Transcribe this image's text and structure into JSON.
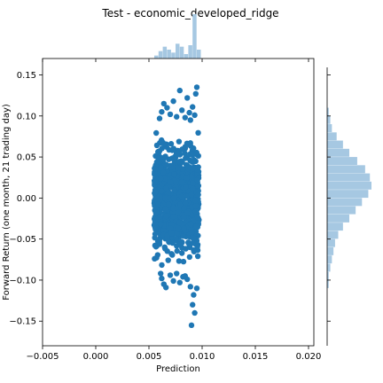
{
  "chart_data": {
    "type": "scatter",
    "title": "Test - economic_developed_ridge",
    "xlabel": "Prediction",
    "ylabel": "Forward Return (one month, 21 trading day)",
    "xlim": [
      -0.005,
      0.0205
    ],
    "ylim": [
      -0.18,
      0.17
    ],
    "x_ticks": [
      -0.005,
      0.0,
      0.005,
      0.01,
      0.015,
      0.02
    ],
    "x_tick_labels": [
      "−0.005",
      "0.000",
      "0.005",
      "0.010",
      "0.015",
      "0.020"
    ],
    "y_ticks": [
      -0.15,
      -0.1,
      -0.05,
      0.0,
      0.05,
      0.1,
      0.15
    ],
    "y_tick_labels": [
      "−0.15",
      "−0.10",
      "−0.05",
      "0.00",
      "0.05",
      "0.10",
      "0.15"
    ],
    "grid": false,
    "colors": {
      "points": "#1f77b4",
      "histogram": "#a6c8e2"
    },
    "scatter_bands": [
      {
        "x_min": 0.0055,
        "x_max": 0.0097,
        "y_min": -0.09,
        "y_max": 0.09
      }
    ],
    "outlier_points": [
      {
        "x": 0.0062,
        "y": 0.105
      },
      {
        "x": 0.0064,
        "y": 0.115
      },
      {
        "x": 0.0067,
        "y": 0.11
      },
      {
        "x": 0.007,
        "y": 0.102
      },
      {
        "x": 0.0073,
        "y": 0.118
      },
      {
        "x": 0.0079,
        "y": 0.131
      },
      {
        "x": 0.0081,
        "y": 0.107
      },
      {
        "x": 0.0084,
        "y": 0.098
      },
      {
        "x": 0.0086,
        "y": 0.122
      },
      {
        "x": 0.0088,
        "y": 0.104
      },
      {
        "x": 0.0091,
        "y": 0.111
      },
      {
        "x": 0.0094,
        "y": 0.127
      },
      {
        "x": 0.0095,
        "y": 0.135
      },
      {
        "x": 0.006,
        "y": 0.097
      },
      {
        "x": 0.0076,
        "y": 0.099
      },
      {
        "x": 0.0089,
        "y": 0.095
      },
      {
        "x": 0.0093,
        "y": 0.101
      },
      {
        "x": 0.0062,
        "y": -0.098
      },
      {
        "x": 0.0064,
        "y": -0.105
      },
      {
        "x": 0.0066,
        "y": -0.109
      },
      {
        "x": 0.007,
        "y": -0.094
      },
      {
        "x": 0.0073,
        "y": -0.101
      },
      {
        "x": 0.0076,
        "y": -0.092
      },
      {
        "x": 0.0082,
        "y": -0.096
      },
      {
        "x": 0.0086,
        "y": -0.099
      },
      {
        "x": 0.0089,
        "y": -0.108
      },
      {
        "x": 0.0091,
        "y": -0.13
      },
      {
        "x": 0.0092,
        "y": -0.118
      },
      {
        "x": 0.0093,
        "y": -0.14
      },
      {
        "x": 0.009,
        "y": -0.155
      },
      {
        "x": 0.0095,
        "y": -0.11
      },
      {
        "x": 0.0061,
        "y": -0.092
      },
      {
        "x": 0.0079,
        "y": -0.103
      },
      {
        "x": 0.0084,
        "y": -0.095
      }
    ],
    "top_histogram": {
      "bin_edges": [
        0.0055,
        0.0059,
        0.0063,
        0.0067,
        0.0071,
        0.0075,
        0.0079,
        0.0083,
        0.0087,
        0.0091,
        0.0095,
        0.0099
      ],
      "counts": [
        2,
        5,
        8,
        6,
        4,
        10,
        8,
        3,
        9,
        30,
        6
      ]
    },
    "right_histogram": {
      "bin_edges": [
        -0.11,
        -0.1,
        -0.09,
        -0.08,
        -0.07,
        -0.06,
        -0.05,
        -0.04,
        -0.03,
        -0.02,
        -0.01,
        0.0,
        0.01,
        0.02,
        0.03,
        0.04,
        0.05,
        0.06,
        0.07,
        0.08,
        0.09,
        0.1,
        0.11
      ],
      "counts": [
        1,
        1,
        2,
        3,
        4,
        5,
        7,
        10,
        14,
        18,
        22,
        26,
        28,
        27,
        24,
        19,
        14,
        10,
        6,
        3,
        2,
        1
      ]
    }
  }
}
